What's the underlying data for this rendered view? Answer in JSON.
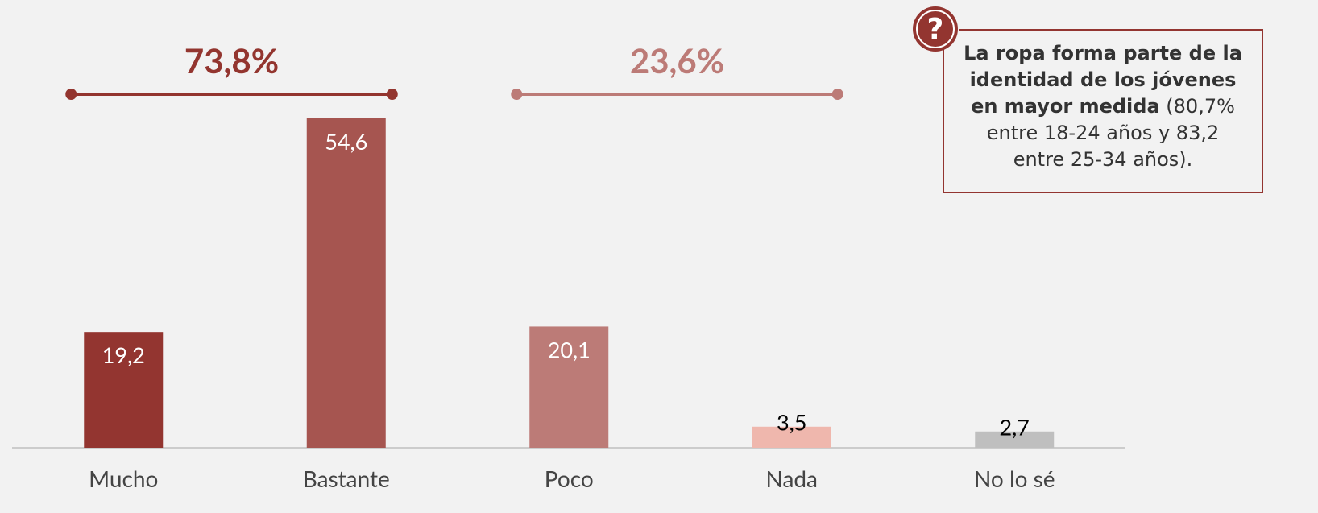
{
  "chart_data": {
    "type": "bar",
    "categories": [
      "Mucho",
      "Bastante",
      "Poco",
      "Nada",
      "No lo sé"
    ],
    "values": [
      19.2,
      54.6,
      20.1,
      3.5,
      2.7
    ],
    "value_labels": [
      "19,2",
      "54,6",
      "20,1",
      "3,5",
      "2,7"
    ],
    "colors": [
      "#933530",
      "#a65550",
      "#bc7b77",
      "#efb7ad",
      "#bfbfbf"
    ],
    "groups": [
      {
        "value": 73.8,
        "label": "73,8%",
        "color": "#93352f",
        "categories": [
          "Mucho",
          "Bastante"
        ]
      },
      {
        "value": 23.6,
        "label": "23,6%",
        "color": "#bc7b77",
        "categories": [
          "Poco",
          "Nada"
        ]
      }
    ],
    "note": {
      "icon": "?",
      "bold": "La ropa forma parte de la identidad de los jóvenes en mayor medida",
      "text": "(80,7% entre 18-24 años y 83,2 entre 25-34 años)."
    }
  }
}
